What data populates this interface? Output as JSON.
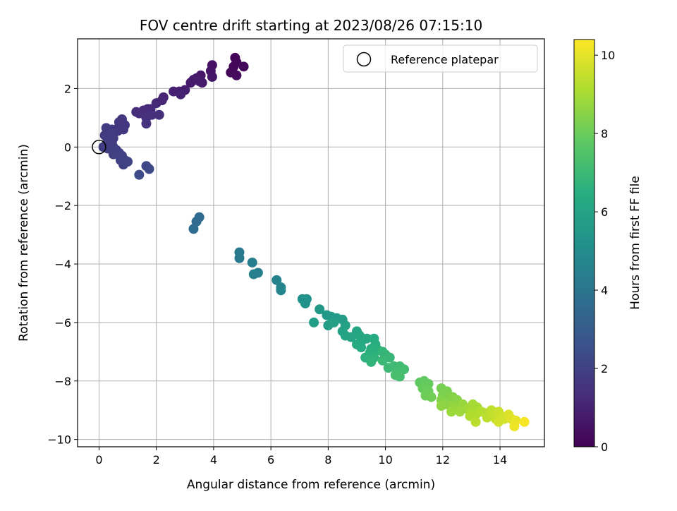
{
  "chart_data": {
    "type": "scatter",
    "title": "FOV centre drift starting at 2023/08/26 07:15:10",
    "xlabel": "Angular distance from reference (arcmin)",
    "ylabel": "Rotation from reference (arcmin)",
    "xlim": [
      -0.75,
      15.55
    ],
    "ylim": [
      -10.25,
      3.7
    ],
    "x_ticks": [
      0,
      2,
      4,
      6,
      8,
      10,
      12,
      14
    ],
    "x_tick_labels": [
      "0",
      "2",
      "4",
      "6",
      "8",
      "10",
      "12",
      "14"
    ],
    "y_ticks": [
      -10,
      -8,
      -6,
      -4,
      -2,
      0,
      2
    ],
    "y_tick_labels": [
      "−10",
      "−8",
      "−6",
      "−4",
      "−2",
      "0",
      "2"
    ],
    "grid": true,
    "legend": {
      "placement": "upper right",
      "entries": [
        {
          "label": "Reference platepar",
          "marker": "open-circle",
          "x": 0,
          "y": 0
        }
      ]
    },
    "colorbar": {
      "label": "Hours from first FF file",
      "range": [
        0,
        10.4
      ],
      "ticks": [
        0,
        2,
        4,
        6,
        8,
        10
      ],
      "tick_labels": [
        "0",
        "2",
        "4",
        "6",
        "8",
        "10"
      ],
      "colormap": "viridis"
    },
    "series": [
      {
        "color_by": "hours",
        "points": [
          {
            "x": 4.75,
            "y": 3.05,
            "c": 0.05
          },
          {
            "x": 4.8,
            "y": 2.9,
            "c": 0.1
          },
          {
            "x": 4.7,
            "y": 2.75,
            "c": 0.15
          },
          {
            "x": 5.05,
            "y": 2.75,
            "c": 0.2
          },
          {
            "x": 4.6,
            "y": 2.55,
            "c": 0.25
          },
          {
            "x": 4.8,
            "y": 2.45,
            "c": 0.3
          },
          {
            "x": 3.95,
            "y": 2.8,
            "c": 0.5
          },
          {
            "x": 3.9,
            "y": 2.6,
            "c": 0.55
          },
          {
            "x": 3.95,
            "y": 2.4,
            "c": 0.6
          },
          {
            "x": 3.55,
            "y": 2.45,
            "c": 0.65
          },
          {
            "x": 3.4,
            "y": 2.35,
            "c": 0.7
          },
          {
            "x": 3.6,
            "y": 2.2,
            "c": 0.72
          },
          {
            "x": 3.2,
            "y": 2.2,
            "c": 0.75
          },
          {
            "x": 3.3,
            "y": 2.3,
            "c": 0.78
          },
          {
            "x": 3.5,
            "y": 2.25,
            "c": 0.8
          },
          {
            "x": 3.0,
            "y": 1.95,
            "c": 0.85
          },
          {
            "x": 2.8,
            "y": 1.9,
            "c": 0.9
          },
          {
            "x": 2.6,
            "y": 1.9,
            "c": 0.95
          },
          {
            "x": 2.85,
            "y": 1.8,
            "c": 1.0
          },
          {
            "x": 2.25,
            "y": 1.7,
            "c": 1.05
          },
          {
            "x": 2.2,
            "y": 1.6,
            "c": 1.1
          },
          {
            "x": 2.0,
            "y": 1.5,
            "c": 1.15
          },
          {
            "x": 1.8,
            "y": 1.3,
            "c": 1.2
          },
          {
            "x": 1.7,
            "y": 1.3,
            "c": 1.25
          },
          {
            "x": 1.55,
            "y": 1.25,
            "c": 1.3
          },
          {
            "x": 1.3,
            "y": 1.2,
            "c": 1.32
          },
          {
            "x": 1.4,
            "y": 1.15,
            "c": 1.34
          },
          {
            "x": 1.6,
            "y": 1.1,
            "c": 1.36
          },
          {
            "x": 1.85,
            "y": 1.1,
            "c": 1.38
          },
          {
            "x": 2.1,
            "y": 1.1,
            "c": 1.4
          },
          {
            "x": 1.65,
            "y": 1.0,
            "c": 1.45
          },
          {
            "x": 1.65,
            "y": 0.8,
            "c": 1.5
          },
          {
            "x": 0.8,
            "y": 0.95,
            "c": 1.6
          },
          {
            "x": 0.7,
            "y": 0.85,
            "c": 1.62
          },
          {
            "x": 0.9,
            "y": 0.75,
            "c": 1.64
          },
          {
            "x": 0.7,
            "y": 0.7,
            "c": 1.66
          },
          {
            "x": 0.85,
            "y": 0.6,
            "c": 1.68
          },
          {
            "x": 0.65,
            "y": 0.55,
            "c": 1.7
          },
          {
            "x": 0.45,
            "y": 0.6,
            "c": 1.72
          },
          {
            "x": 0.25,
            "y": 0.65,
            "c": 1.74
          },
          {
            "x": 0.35,
            "y": 0.5,
            "c": 1.76
          },
          {
            "x": 0.2,
            "y": 0.4,
            "c": 1.78
          },
          {
            "x": 0.5,
            "y": 0.3,
            "c": 1.8
          },
          {
            "x": 0.3,
            "y": 0.25,
            "c": 1.82
          },
          {
            "x": 0.45,
            "y": 0.15,
            "c": 1.84
          },
          {
            "x": 0.15,
            "y": 0.0,
            "c": 1.86
          },
          {
            "x": 0.3,
            "y": -0.05,
            "c": 1.88
          },
          {
            "x": 0.5,
            "y": 0.0,
            "c": 1.9
          },
          {
            "x": 0.6,
            "y": -0.1,
            "c": 1.92
          },
          {
            "x": 0.7,
            "y": -0.2,
            "c": 1.94
          },
          {
            "x": 0.5,
            "y": -0.25,
            "c": 1.96
          },
          {
            "x": 0.8,
            "y": -0.3,
            "c": 1.98
          },
          {
            "x": 0.9,
            "y": -0.45,
            "c": 2.0
          },
          {
            "x": 0.75,
            "y": -0.45,
            "c": 2.02
          },
          {
            "x": 0.85,
            "y": -0.6,
            "c": 2.04
          },
          {
            "x": 1.0,
            "y": -0.5,
            "c": 2.06
          },
          {
            "x": 1.65,
            "y": -0.65,
            "c": 2.2
          },
          {
            "x": 1.75,
            "y": -0.75,
            "c": 2.3
          },
          {
            "x": 1.4,
            "y": -0.95,
            "c": 2.4
          },
          {
            "x": 3.5,
            "y": -2.4,
            "c": 3.6
          },
          {
            "x": 3.4,
            "y": -2.55,
            "c": 3.65
          },
          {
            "x": 3.3,
            "y": -2.8,
            "c": 3.7
          },
          {
            "x": 4.9,
            "y": -3.6,
            "c": 4.2
          },
          {
            "x": 4.9,
            "y": -3.8,
            "c": 4.25
          },
          {
            "x": 5.35,
            "y": -3.95,
            "c": 4.35
          },
          {
            "x": 5.55,
            "y": -4.3,
            "c": 4.45
          },
          {
            "x": 5.4,
            "y": -4.35,
            "c": 4.5
          },
          {
            "x": 6.2,
            "y": -4.55,
            "c": 4.6
          },
          {
            "x": 6.35,
            "y": -4.8,
            "c": 4.65
          },
          {
            "x": 6.35,
            "y": -4.9,
            "c": 4.7
          },
          {
            "x": 7.1,
            "y": -5.2,
            "c": 5.2
          },
          {
            "x": 7.25,
            "y": -5.2,
            "c": 5.25
          },
          {
            "x": 7.2,
            "y": -5.35,
            "c": 5.3
          },
          {
            "x": 7.7,
            "y": -5.55,
            "c": 5.5
          },
          {
            "x": 7.95,
            "y": -5.75,
            "c": 5.55
          },
          {
            "x": 8.1,
            "y": -5.8,
            "c": 5.6
          },
          {
            "x": 8.3,
            "y": -5.85,
            "c": 5.65
          },
          {
            "x": 8.5,
            "y": -5.9,
            "c": 5.7
          },
          {
            "x": 8.0,
            "y": -6.1,
            "c": 5.75
          },
          {
            "x": 7.5,
            "y": -6.0,
            "c": 5.8
          },
          {
            "x": 8.2,
            "y": -6.0,
            "c": 5.85
          },
          {
            "x": 8.6,
            "y": -6.1,
            "c": 5.9
          },
          {
            "x": 8.5,
            "y": -6.3,
            "c": 5.95
          },
          {
            "x": 8.6,
            "y": -6.45,
            "c": 6.0
          },
          {
            "x": 8.8,
            "y": -6.5,
            "c": 6.05
          },
          {
            "x": 9.0,
            "y": -6.3,
            "c": 6.1
          },
          {
            "x": 9.1,
            "y": -6.45,
            "c": 6.15
          },
          {
            "x": 9.2,
            "y": -6.6,
            "c": 6.2
          },
          {
            "x": 9.35,
            "y": -6.55,
            "c": 6.25
          },
          {
            "x": 9.0,
            "y": -6.75,
            "c": 6.3
          },
          {
            "x": 9.15,
            "y": -6.85,
            "c": 6.35
          },
          {
            "x": 9.6,
            "y": -6.55,
            "c": 6.4
          },
          {
            "x": 9.65,
            "y": -6.75,
            "c": 6.45
          },
          {
            "x": 9.5,
            "y": -6.9,
            "c": 6.5
          },
          {
            "x": 9.75,
            "y": -6.95,
            "c": 6.55
          },
          {
            "x": 9.45,
            "y": -7.05,
            "c": 6.6
          },
          {
            "x": 9.3,
            "y": -7.2,
            "c": 6.65
          },
          {
            "x": 9.6,
            "y": -7.2,
            "c": 6.7
          },
          {
            "x": 9.5,
            "y": -7.35,
            "c": 6.75
          },
          {
            "x": 9.9,
            "y": -7.0,
            "c": 6.8
          },
          {
            "x": 10.0,
            "y": -7.1,
            "c": 6.85
          },
          {
            "x": 10.15,
            "y": -7.2,
            "c": 6.9
          },
          {
            "x": 9.9,
            "y": -7.3,
            "c": 6.95
          },
          {
            "x": 10.1,
            "y": -7.55,
            "c": 7.0
          },
          {
            "x": 10.3,
            "y": -7.5,
            "c": 7.05
          },
          {
            "x": 10.5,
            "y": -7.5,
            "c": 7.1
          },
          {
            "x": 10.4,
            "y": -7.7,
            "c": 7.15
          },
          {
            "x": 10.65,
            "y": -7.6,
            "c": 7.2
          },
          {
            "x": 10.5,
            "y": -7.85,
            "c": 7.25
          },
          {
            "x": 10.35,
            "y": -7.8,
            "c": 7.3
          },
          {
            "x": 11.2,
            "y": -8.05,
            "c": 7.8
          },
          {
            "x": 11.35,
            "y": -8.0,
            "c": 7.85
          },
          {
            "x": 11.5,
            "y": -8.1,
            "c": 7.9
          },
          {
            "x": 11.3,
            "y": -8.25,
            "c": 7.95
          },
          {
            "x": 11.5,
            "y": -8.35,
            "c": 8.0
          },
          {
            "x": 11.4,
            "y": -8.5,
            "c": 8.05
          },
          {
            "x": 11.6,
            "y": -8.55,
            "c": 8.1
          },
          {
            "x": 11.95,
            "y": -8.25,
            "c": 8.2
          },
          {
            "x": 12.15,
            "y": -8.35,
            "c": 8.25
          },
          {
            "x": 12.0,
            "y": -8.5,
            "c": 8.3
          },
          {
            "x": 12.2,
            "y": -8.55,
            "c": 8.35
          },
          {
            "x": 11.95,
            "y": -8.65,
            "c": 8.4
          },
          {
            "x": 12.35,
            "y": -8.55,
            "c": 8.45
          },
          {
            "x": 12.5,
            "y": -8.65,
            "c": 8.5
          },
          {
            "x": 12.1,
            "y": -8.8,
            "c": 8.55
          },
          {
            "x": 11.95,
            "y": -8.85,
            "c": 8.6
          },
          {
            "x": 12.35,
            "y": -8.85,
            "c": 8.65
          },
          {
            "x": 12.5,
            "y": -8.9,
            "c": 8.7
          },
          {
            "x": 12.7,
            "y": -8.8,
            "c": 8.75
          },
          {
            "x": 12.3,
            "y": -9.05,
            "c": 8.8
          },
          {
            "x": 12.6,
            "y": -9.05,
            "c": 8.85
          },
          {
            "x": 12.85,
            "y": -8.95,
            "c": 8.9
          },
          {
            "x": 13.05,
            "y": -8.8,
            "c": 8.95
          },
          {
            "x": 13.2,
            "y": -8.9,
            "c": 9.0
          },
          {
            "x": 13.0,
            "y": -9.05,
            "c": 9.05
          },
          {
            "x": 13.15,
            "y": -9.15,
            "c": 9.1
          },
          {
            "x": 12.95,
            "y": -9.2,
            "c": 9.15
          },
          {
            "x": 13.35,
            "y": -9.05,
            "c": 9.2
          },
          {
            "x": 13.5,
            "y": -9.1,
            "c": 9.25
          },
          {
            "x": 13.15,
            "y": -9.4,
            "c": 9.3
          },
          {
            "x": 13.55,
            "y": -9.25,
            "c": 9.35
          },
          {
            "x": 13.7,
            "y": -9.0,
            "c": 9.4
          },
          {
            "x": 13.75,
            "y": -9.15,
            "c": 9.45
          },
          {
            "x": 13.85,
            "y": -9.3,
            "c": 9.5
          },
          {
            "x": 13.95,
            "y": -9.05,
            "c": 9.55
          },
          {
            "x": 14.05,
            "y": -9.2,
            "c": 9.6
          },
          {
            "x": 13.95,
            "y": -9.4,
            "c": 9.7
          },
          {
            "x": 14.15,
            "y": -9.3,
            "c": 9.75
          },
          {
            "x": 14.3,
            "y": -9.15,
            "c": 9.85
          },
          {
            "x": 14.4,
            "y": -9.3,
            "c": 9.95
          },
          {
            "x": 14.55,
            "y": -9.35,
            "c": 10.05
          },
          {
            "x": 14.5,
            "y": -9.55,
            "c": 10.15
          },
          {
            "x": 14.85,
            "y": -9.4,
            "c": 10.3
          }
        ]
      }
    ]
  }
}
